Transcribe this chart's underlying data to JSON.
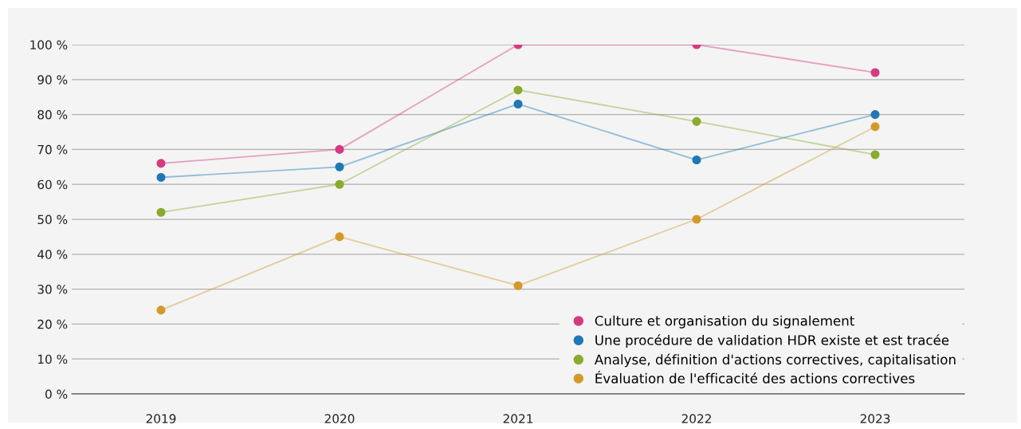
{
  "chart_data": {
    "type": "line",
    "categories": [
      "2019",
      "2020",
      "2021",
      "2022",
      "2023"
    ],
    "ylim": [
      0,
      100
    ],
    "yticks": [
      {
        "value": 0,
        "label": "0 %"
      },
      {
        "value": 10,
        "label": "10 %"
      },
      {
        "value": 20,
        "label": "20 %"
      },
      {
        "value": 30,
        "label": "30 %"
      },
      {
        "value": 40,
        "label": "40 %"
      },
      {
        "value": 50,
        "label": "50 %"
      },
      {
        "value": 60,
        "label": "60 %"
      },
      {
        "value": 70,
        "label": "70 %"
      },
      {
        "value": 80,
        "label": "80 %"
      },
      {
        "value": 90,
        "label": "90 %"
      },
      {
        "value": 100,
        "label": "100 %"
      }
    ],
    "grid": "y",
    "legend": "bottom right",
    "marker": "circle",
    "line_style": "solid",
    "series": [
      {
        "name": "Culture et organisation du signalement",
        "color": "#d63a7e",
        "values": [
          66,
          70,
          100,
          100,
          92
        ]
      },
      {
        "name": "Une procédure de validation HDR existe et est tracée",
        "color": "#1f78b4",
        "values": [
          62,
          65,
          83,
          67,
          80
        ]
      },
      {
        "name": "Analyse, définition d'actions correctives, capitalisation",
        "color": "#8aab2c",
        "values": [
          52,
          60,
          87,
          78,
          68.5
        ]
      },
      {
        "name": "Évaluation de l'efficacité des actions correctives",
        "color": "#d39a2a",
        "values": [
          24,
          45,
          31,
          50,
          76.5
        ]
      }
    ]
  }
}
